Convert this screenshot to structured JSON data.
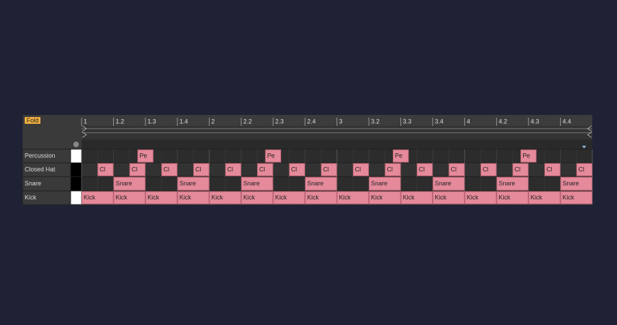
{
  "fold_button": "Fold",
  "ruler": {
    "labels": [
      "1",
      "1.2",
      "1.3",
      "1.4",
      "2",
      "2.2",
      "2.3",
      "2.4",
      "3",
      "3.2",
      "3.3",
      "3.4",
      "4",
      "4.2",
      "4.3",
      "4.4"
    ]
  },
  "rows": [
    {
      "name": "Percussion",
      "notes": [
        {
          "label": "Pe",
          "step": 1.75,
          "length": 0.5
        },
        {
          "label": "Pe",
          "step": 5.75,
          "length": 0.5
        },
        {
          "label": "Pe",
          "step": 9.75,
          "length": 0.5
        },
        {
          "label": "Pe",
          "step": 13.75,
          "length": 0.5
        }
      ]
    },
    {
      "name": "Closed Hat",
      "notes": [
        {
          "label": "Cl",
          "step": 0.5,
          "length": 0.5
        },
        {
          "label": "Cl",
          "step": 1.5,
          "length": 0.5
        },
        {
          "label": "Cl",
          "step": 2.5,
          "length": 0.5
        },
        {
          "label": "Cl",
          "step": 3.5,
          "length": 0.5
        },
        {
          "label": "Cl",
          "step": 4.5,
          "length": 0.5
        },
        {
          "label": "Cl",
          "step": 5.5,
          "length": 0.5
        },
        {
          "label": "Cl",
          "step": 6.5,
          "length": 0.5
        },
        {
          "label": "Cl",
          "step": 7.5,
          "length": 0.5
        },
        {
          "label": "Cl",
          "step": 8.5,
          "length": 0.5
        },
        {
          "label": "Cl",
          "step": 9.5,
          "length": 0.5
        },
        {
          "label": "Cl",
          "step": 10.5,
          "length": 0.5
        },
        {
          "label": "Cl",
          "step": 11.5,
          "length": 0.5
        },
        {
          "label": "Cl",
          "step": 12.5,
          "length": 0.5
        },
        {
          "label": "Cl",
          "step": 13.5,
          "length": 0.5
        },
        {
          "label": "Cl",
          "step": 14.5,
          "length": 0.5
        },
        {
          "label": "Cl",
          "step": 15.5,
          "length": 0.5
        }
      ]
    },
    {
      "name": "Snare",
      "notes": [
        {
          "label": "Snare",
          "step": 1,
          "length": 1
        },
        {
          "label": "Snare",
          "step": 3,
          "length": 1
        },
        {
          "label": "Snare",
          "step": 5,
          "length": 1
        },
        {
          "label": "Snare",
          "step": 7,
          "length": 1
        },
        {
          "label": "Snare",
          "step": 9,
          "length": 1
        },
        {
          "label": "Snare",
          "step": 11,
          "length": 1
        },
        {
          "label": "Snare",
          "step": 13,
          "length": 1
        },
        {
          "label": "Snare",
          "step": 15,
          "length": 1
        }
      ]
    },
    {
      "name": "Kick",
      "notes": [
        {
          "label": "Kick",
          "step": 0,
          "length": 1
        },
        {
          "label": "Kick",
          "step": 1,
          "length": 1
        },
        {
          "label": "Kick",
          "step": 2,
          "length": 1
        },
        {
          "label": "Kick",
          "step": 3,
          "length": 1
        },
        {
          "label": "Kick",
          "step": 4,
          "length": 1
        },
        {
          "label": "Kick",
          "step": 5,
          "length": 1
        },
        {
          "label": "Kick",
          "step": 6,
          "length": 1
        },
        {
          "label": "Kick",
          "step": 7,
          "length": 1
        },
        {
          "label": "Kick",
          "step": 8,
          "length": 1
        },
        {
          "label": "Kick",
          "step": 9,
          "length": 1
        },
        {
          "label": "Kick",
          "step": 10,
          "length": 1
        },
        {
          "label": "Kick",
          "step": 11,
          "length": 1
        },
        {
          "label": "Kick",
          "step": 12,
          "length": 1
        },
        {
          "label": "Kick",
          "step": 13,
          "length": 1
        },
        {
          "label": "Kick",
          "step": 14,
          "length": 1
        },
        {
          "label": "Kick",
          "step": 15,
          "length": 1
        }
      ]
    }
  ]
}
